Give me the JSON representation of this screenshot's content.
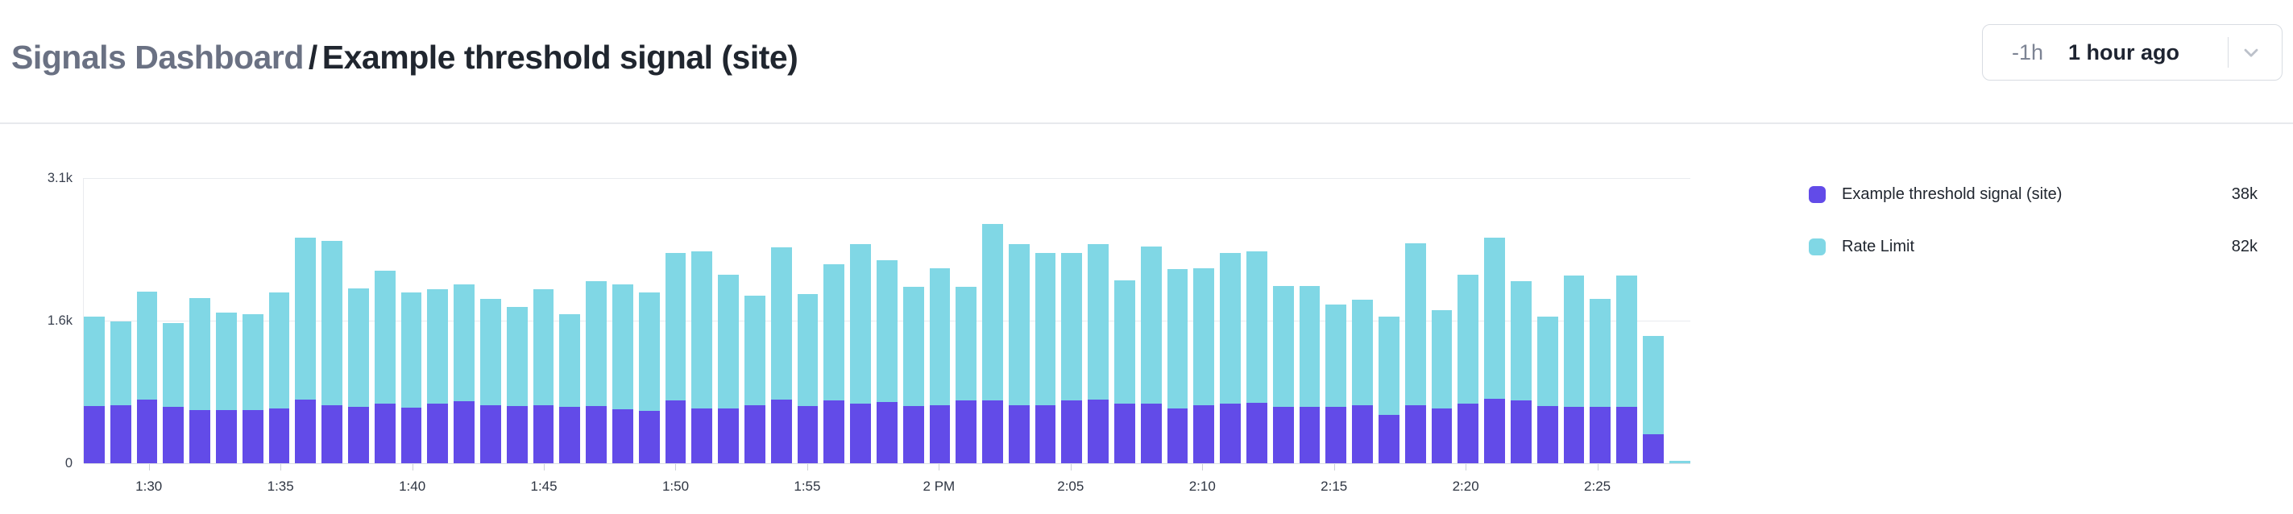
{
  "header": {
    "breadcrumb_root": "Signals Dashboard",
    "separator": "/",
    "page_title": "Example threshold signal (site)",
    "time_selector": {
      "shorthand": "-1h",
      "label": "1 hour ago",
      "chevron_icon": "chevron-down"
    }
  },
  "colors": {
    "signal_purple": "#624BE8",
    "rate_limit_cyan": "#80D7E5",
    "grid": "#E9EBEF",
    "axis_text": "#39404E",
    "title_gray": "#6A7183",
    "title_dark": "#20262F"
  },
  "legend": {
    "items": [
      {
        "label": "Example threshold signal (site)",
        "value": "38k",
        "swatch_icon": "purple-square"
      },
      {
        "label": "Rate Limit",
        "value": "82k",
        "swatch_icon": "cyan-square"
      }
    ]
  },
  "chart_data": {
    "type": "bar",
    "stacked": true,
    "grid": "horizontal",
    "legend_position": "right",
    "ylim": [
      0,
      3100
    ],
    "y_ticks": [
      {
        "label": "0",
        "value": 0
      },
      {
        "label": "1.6k",
        "value": 1550
      },
      {
        "label": "3.1k",
        "value": 3100
      }
    ],
    "x": [
      "1:28",
      "1:29",
      "1:30",
      "1:31",
      "1:32",
      "1:33",
      "1:34",
      "1:35",
      "1:36",
      "1:37",
      "1:38",
      "1:39",
      "1:40",
      "1:41",
      "1:42",
      "1:43",
      "1:44",
      "1:45",
      "1:46",
      "1:47",
      "1:48",
      "1:49",
      "1:50",
      "1:51",
      "1:52",
      "1:53",
      "1:54",
      "1:55",
      "1:56",
      "1:57",
      "1:58",
      "1:59",
      "2:00",
      "2:01",
      "2:02",
      "2:03",
      "2:04",
      "2:05",
      "2:06",
      "2:07",
      "2:08",
      "2:09",
      "2:10",
      "2:11",
      "2:12",
      "2:13",
      "2:14",
      "2:15",
      "2:16",
      "2:17",
      "2:18",
      "2:19",
      "2:20",
      "2:21",
      "2:22",
      "2:23",
      "2:24",
      "2:25",
      "2:26",
      "2:27",
      "2:28"
    ],
    "x_tick_labels": [
      {
        "label": "1:30",
        "bar_index": 2
      },
      {
        "label": "1:35",
        "bar_index": 7
      },
      {
        "label": "1:40",
        "bar_index": 12
      },
      {
        "label": "1:45",
        "bar_index": 17
      },
      {
        "label": "1:50",
        "bar_index": 22
      },
      {
        "label": "1:55",
        "bar_index": 27
      },
      {
        "label": "2 PM",
        "bar_index": 32
      },
      {
        "label": "2:05",
        "bar_index": 37
      },
      {
        "label": "2:10",
        "bar_index": 42
      },
      {
        "label": "2:15",
        "bar_index": 47
      },
      {
        "label": "2:20",
        "bar_index": 52
      },
      {
        "label": "2:25",
        "bar_index": 57
      }
    ],
    "series": [
      {
        "name": "Example threshold signal (site)",
        "color": "#624BE8",
        "total_label": "38k",
        "values": [
          620,
          635,
          690,
          610,
          580,
          580,
          580,
          600,
          690,
          635,
          615,
          645,
          605,
          645,
          675,
          630,
          625,
          630,
          610,
          625,
          585,
          570,
          685,
          595,
          600,
          635,
          695,
          625,
          685,
          650,
          670,
          625,
          635,
          685,
          685,
          630,
          630,
          685,
          695,
          650,
          650,
          600,
          635,
          645,
          660,
          615,
          610,
          615,
          630,
          525,
          635,
          600,
          650,
          700,
          685,
          625,
          610,
          610,
          610,
          320,
          0
        ]
      },
      {
        "name": "Rate Limit",
        "color": "#80D7E5",
        "total_label": "82k",
        "values": [
          970,
          905,
          1175,
          910,
          1220,
          1055,
          1040,
          1255,
          1765,
          1785,
          1290,
          1445,
          1250,
          1250,
          1270,
          1160,
          1075,
          1265,
          1010,
          1350,
          1360,
          1285,
          1600,
          1705,
          1450,
          1190,
          1655,
          1215,
          1480,
          1730,
          1540,
          1290,
          1485,
          1230,
          1915,
          1750,
          1660,
          1605,
          1690,
          1340,
          1710,
          1515,
          1485,
          1640,
          1645,
          1315,
          1320,
          1115,
          1145,
          1065,
          1760,
          1065,
          1400,
          1750,
          1295,
          965,
          1430,
          1180,
          1430,
          1065,
          25
        ]
      }
    ]
  }
}
